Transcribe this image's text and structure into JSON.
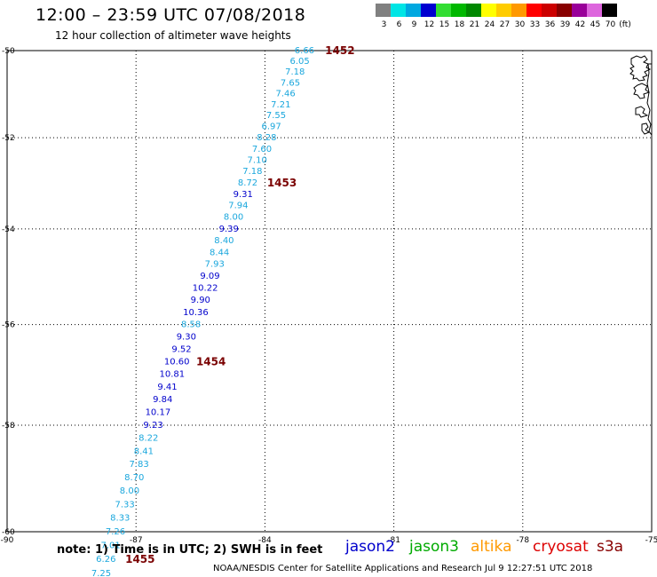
{
  "header": {
    "title": "12:00 – 23:59 UTC 07/08/2018",
    "subtitle": "12 hour collection of altimeter wave heights"
  },
  "legend": {
    "unit": "(ft)",
    "bins": [
      {
        "label": "3",
        "color": "#808080"
      },
      {
        "label": "6",
        "color": "#00e5e5"
      },
      {
        "label": "9",
        "color": "#00a8e0"
      },
      {
        "label": "12",
        "color": "#0000d0"
      },
      {
        "label": "15",
        "color": "#33dd33"
      },
      {
        "label": "18",
        "color": "#00b800"
      },
      {
        "label": "21",
        "color": "#008800"
      },
      {
        "label": "24",
        "color": "#ffff00"
      },
      {
        "label": "27",
        "color": "#ffcc00"
      },
      {
        "label": "30",
        "color": "#ff9900"
      },
      {
        "label": "33",
        "color": "#ff0000"
      },
      {
        "label": "36",
        "color": "#cc0000"
      },
      {
        "label": "39",
        "color": "#880000"
      },
      {
        "label": "42",
        "color": "#990099"
      },
      {
        "label": "45",
        "color": "#dd66dd"
      },
      {
        "label": "70",
        "color": "#000000"
      }
    ]
  },
  "map": {
    "lon_ticks": [
      -90,
      -87,
      -84,
      -81,
      -78,
      -75
    ],
    "lat_ticks": [
      -50,
      -52,
      -54,
      -56,
      -58,
      -60
    ],
    "lon_labels": [
      "-90",
      "-87",
      "-84",
      "-81",
      "-78",
      "-75"
    ],
    "lat_labels": [
      "-50",
      "-52",
      "-54",
      "-56",
      "-58",
      "-60"
    ],
    "color_low": "#1aa7dd",
    "color_high": "#0000cc",
    "time_color": "#7a0000",
    "swh_readings": [
      {
        "text": "6.66",
        "lat": -50.0,
        "lon": -83.08
      },
      {
        "text": "6.05",
        "lat": -50.25,
        "lon": -83.19
      },
      {
        "text": "7.18",
        "lat": -50.5,
        "lon": -83.3
      },
      {
        "text": "7.65",
        "lat": -50.75,
        "lon": -83.41
      },
      {
        "text": "7.46",
        "lat": -51.0,
        "lon": -83.52
      },
      {
        "text": "7.21",
        "lat": -51.25,
        "lon": -83.63
      },
      {
        "text": "7.55",
        "lat": -51.5,
        "lon": -83.74
      },
      {
        "text": "6.97",
        "lat": -51.75,
        "lon": -83.85
      },
      {
        "text": "8.28",
        "lat": -52.0,
        "lon": -83.96
      },
      {
        "text": "7.60",
        "lat": -52.25,
        "lon": -84.07
      },
      {
        "text": "7.10",
        "lat": -52.5,
        "lon": -84.18
      },
      {
        "text": "7.18",
        "lat": -52.75,
        "lon": -84.29
      },
      {
        "text": "8.72",
        "lat": -53.0,
        "lon": -84.4
      },
      {
        "text": "9.31",
        "lat": -53.25,
        "lon": -84.51
      },
      {
        "text": "7.94",
        "lat": -53.5,
        "lon": -84.62
      },
      {
        "text": "8.00",
        "lat": -53.75,
        "lon": -84.73
      },
      {
        "text": "9.39",
        "lat": -54.0,
        "lon": -84.84
      },
      {
        "text": "8.40",
        "lat": -54.25,
        "lon": -84.95
      },
      {
        "text": "8.44",
        "lat": -54.5,
        "lon": -85.06
      },
      {
        "text": "7.93",
        "lat": -54.75,
        "lon": -85.17
      },
      {
        "text": "9.09",
        "lat": -55.0,
        "lon": -85.28
      },
      {
        "text": "10.22",
        "lat": -55.25,
        "lon": -85.39
      },
      {
        "text": "9.90",
        "lat": -55.5,
        "lon": -85.5
      },
      {
        "text": "10.36",
        "lat": -55.75,
        "lon": -85.61
      },
      {
        "text": "8.58",
        "lat": -56.0,
        "lon": -85.72
      },
      {
        "text": "9.30",
        "lat": -56.25,
        "lon": -85.83
      },
      {
        "text": "9.52",
        "lat": -56.5,
        "lon": -85.94
      },
      {
        "text": "10.60",
        "lat": -56.75,
        "lon": -86.05
      },
      {
        "text": "10.81",
        "lat": -57.0,
        "lon": -86.16
      },
      {
        "text": "9.41",
        "lat": -57.25,
        "lon": -86.27
      },
      {
        "text": "9.84",
        "lat": -57.5,
        "lon": -86.38
      },
      {
        "text": "10.17",
        "lat": -57.75,
        "lon": -86.49
      },
      {
        "text": "9.23",
        "lat": -58.0,
        "lon": -86.6
      },
      {
        "text": "8.22",
        "lat": -58.25,
        "lon": -86.71
      },
      {
        "text": "8.41",
        "lat": -58.5,
        "lon": -86.82
      },
      {
        "text": "7.83",
        "lat": -58.75,
        "lon": -86.93
      },
      {
        "text": "8.70",
        "lat": -59.0,
        "lon": -87.04
      },
      {
        "text": "8.00",
        "lat": -59.25,
        "lon": -87.15
      },
      {
        "text": "7.33",
        "lat": -59.5,
        "lon": -87.26
      },
      {
        "text": "8.33",
        "lat": -59.75,
        "lon": -87.37
      },
      {
        "text": "7.26",
        "lat": -60.0,
        "lon": -87.48
      },
      {
        "text": "7.01",
        "lat": -60.25,
        "lon": -87.59
      },
      {
        "text": "6.26",
        "lat": -60.5,
        "lon": -87.7
      },
      {
        "text": "7.25",
        "lat": -60.75,
        "lon": -87.81
      }
    ],
    "time_labels": [
      {
        "text": "1452",
        "lat": -50.0,
        "lon": -82.6
      },
      {
        "text": "1453",
        "lat": -53.0,
        "lon": -83.95
      },
      {
        "text": "1454",
        "lat": -56.75,
        "lon": -85.6
      },
      {
        "text": "1455",
        "lat": -60.5,
        "lon": -87.25
      }
    ]
  },
  "note": "note:  1) Time is in UTC;  2) SWH is in feet",
  "satellites": [
    {
      "name": "jason2",
      "color": "#0000cc"
    },
    {
      "name": "jason3",
      "color": "#00aa00"
    },
    {
      "name": "altika",
      "color": "#ff9900"
    },
    {
      "name": "cryosat",
      "color": "#dd0000"
    },
    {
      "name": "s3a",
      "color": "#880000"
    }
  ],
  "footer": "NOAA/NESDIS Center for Satellite Applications and Research    Jul  9 12:27:51 UTC 2018"
}
